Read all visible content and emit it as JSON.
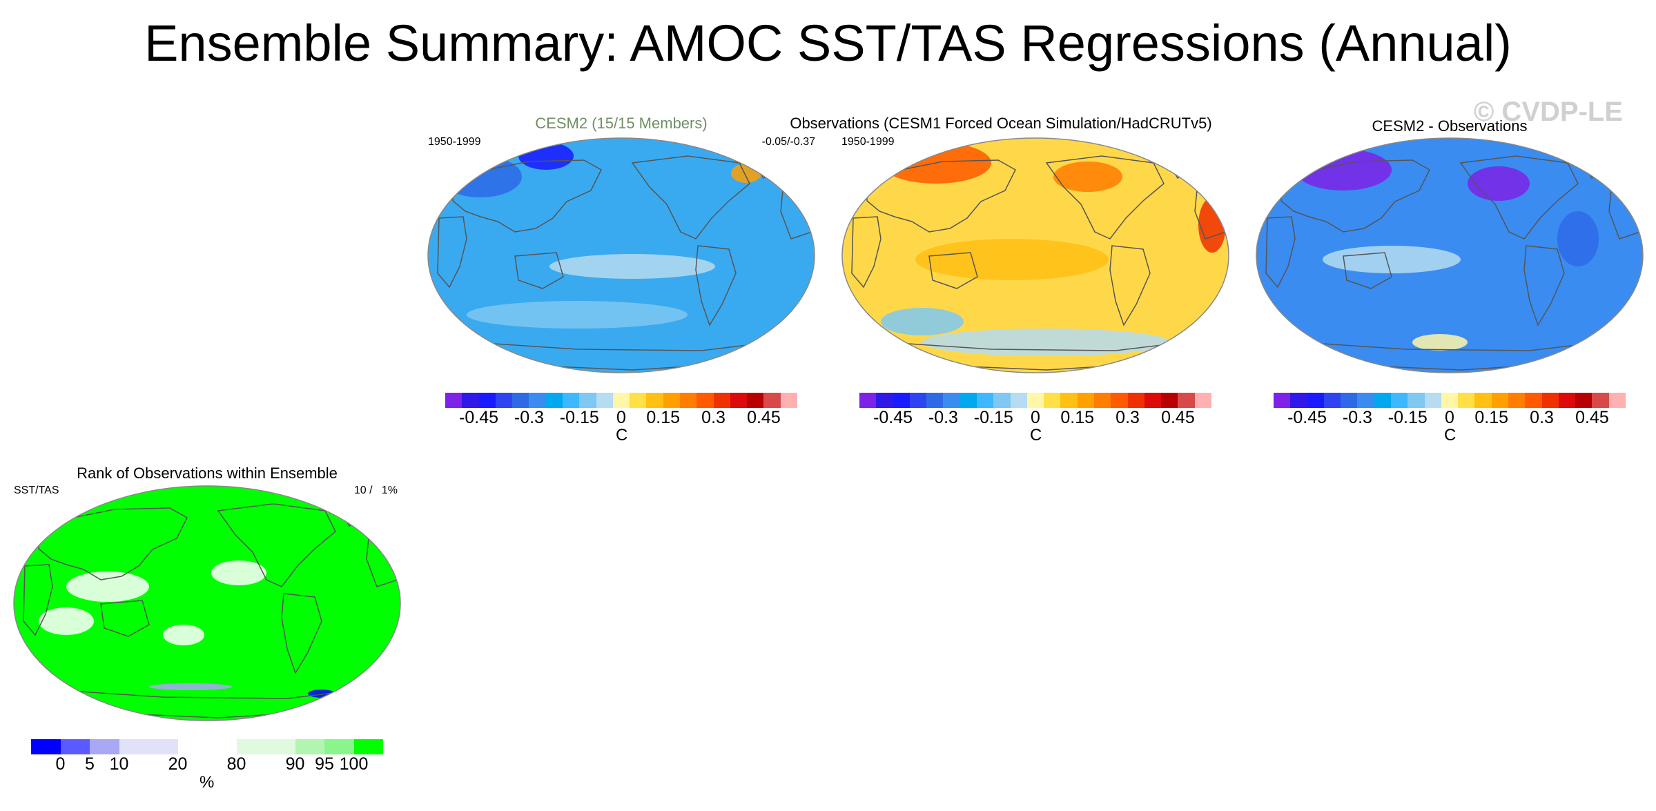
{
  "title": "Ensemble Summary: AMOC SST/TAS Regressions (Annual)",
  "watermark": "© CVDP-LE",
  "panels": [
    {
      "title": "CESM2 (15/15 Members)",
      "title_color": "#6f8f63",
      "left_label": "1950-1999",
      "right_label": "-0.05/-0.37"
    },
    {
      "title": "Observations (CESM1 Forced Ocean Simulation/HadCRUTv5)",
      "title_color": "#000000",
      "left_label": "1950-1999",
      "right_label": ""
    },
    {
      "title": "CESM2 - Observations",
      "title_color": "#000000",
      "left_label": "",
      "right_label": ""
    }
  ],
  "rank_panel": {
    "title": "Rank of Observations within Ensemble",
    "left_label": "SST/TAS",
    "right_label": "10 /   1%"
  },
  "colorbar": {
    "units": "C",
    "ticks": [
      "-0.45",
      "-0.3",
      "-0.15",
      "0",
      "0.15",
      "0.3",
      "0.45"
    ],
    "colors": [
      "#7d22e6",
      "#3018e8",
      "#1a1aff",
      "#2d44f0",
      "#2e6ae8",
      "#3a8cf0",
      "#00a8f0",
      "#3db8ff",
      "#7ec8f2",
      "#b5dcf0",
      "#fff6a8",
      "#ffe045",
      "#ffc014",
      "#ffa000",
      "#ff7d00",
      "#ff5a00",
      "#f03000",
      "#dc0a0a",
      "#b80000",
      "#d84a4a",
      "#ffb0b0"
    ]
  },
  "rank_colorbar": {
    "units": "%",
    "ticks": [
      "0",
      "5",
      "10",
      "20",
      "80",
      "90",
      "95",
      "100"
    ],
    "colors": [
      "#0000ff",
      "#5a5aff",
      "#a8a8f5",
      "#e1e1fa",
      "#e1e1fa",
      "#ffffff",
      "#ffffff",
      "#e0fae0",
      "#e0fae0",
      "#b0f5b0",
      "#8af58a",
      "#00ff00"
    ]
  },
  "map_colors": {
    "model_ocean": "#3aaaf0",
    "obs_ocean": "#ffd84a",
    "diff_ocean": "#3a8cf0",
    "rank_fill": "#00ff00",
    "land": "#ffffff"
  }
}
